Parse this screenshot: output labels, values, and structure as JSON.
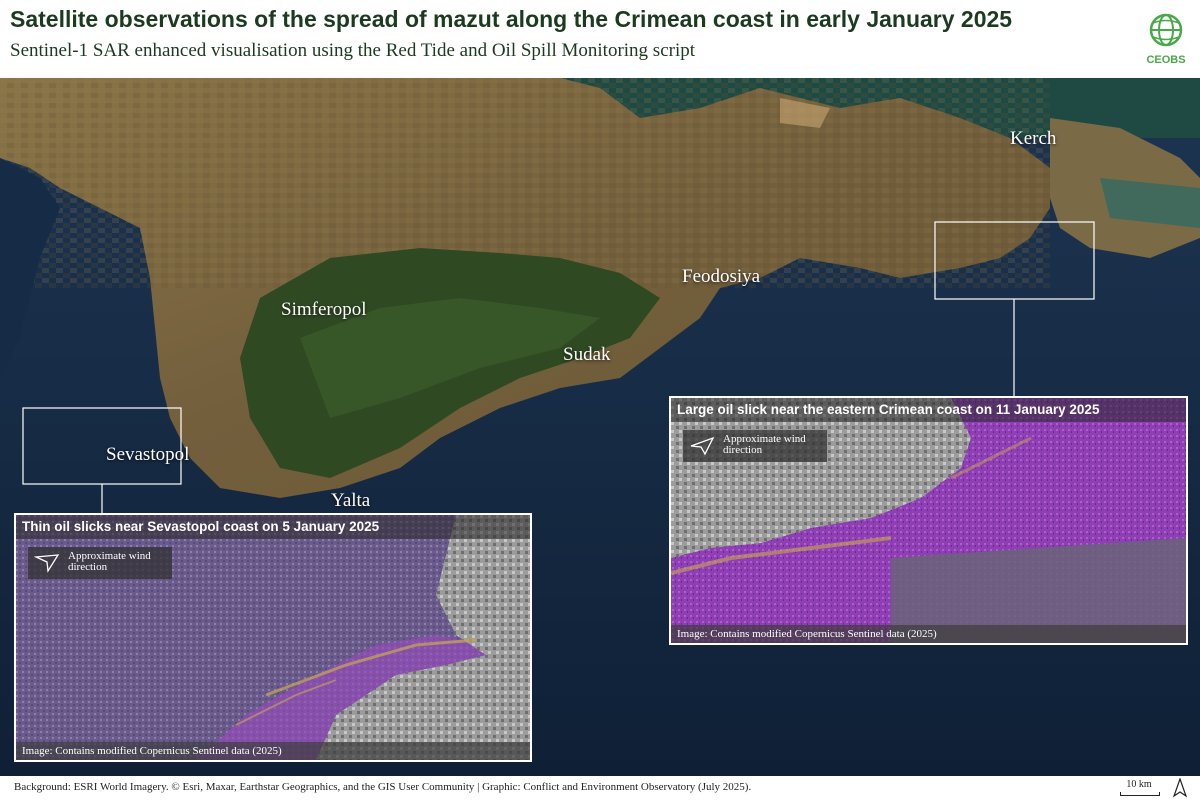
{
  "header": {
    "title": "Satellite observations of the spread of mazut along the Crimean coast in early January 2025",
    "subtitle": "Sentinel-1 SAR enhanced visualisation using the Red Tide and Oil Spill Monitoring script",
    "logo_text": "CEOBS",
    "logo_icon": "globe-icon"
  },
  "map": {
    "cities": {
      "kerch": "Kerch",
      "feodosiya": "Feodosiya",
      "simferopol": "Simferopol",
      "sudak": "Sudak",
      "sevastopol": "Sevastopol",
      "yalta": "Yalta"
    }
  },
  "insets": {
    "west": {
      "title": "Thin oil slicks near Sevastopol coast on 5 January 2025",
      "wind_label": "Approximate wind direction",
      "credit": "Image: Contains modified Copernicus Sentinel data  (2025)"
    },
    "east": {
      "title": "Large oil slick near the eastern Crimean coast on 11 January 2025",
      "wind_label": "Approximate wind direction",
      "credit": "Image: Contains modified Copernicus Sentinel data  (2025)"
    }
  },
  "footer": {
    "credit": "Background: ESRI World Imagery. © Esri, Maxar, Earthstar Geographics, and the GIS User Community | Graphic: Conflict and Environment Observatory (July 2025).",
    "scale_label": "10 km",
    "north_icon": "north-arrow-icon"
  },
  "colors": {
    "title": "#1c3a1f",
    "logo_green": "#4aa84a",
    "sea": "#13263d",
    "land": "#7a6a45",
    "forest": "#2e4a22",
    "oil_slick_purple": "#8a3fb0"
  }
}
